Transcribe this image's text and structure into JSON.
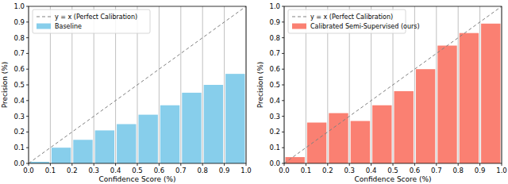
{
  "chart_data": [
    {
      "type": "bar",
      "x_label": "Confidence Score (%)",
      "y_label": "Precision (%)",
      "bins": [
        0,
        0.1,
        0.2,
        0.3,
        0.4,
        0.5,
        0.6,
        0.7,
        0.8,
        0.9,
        1
      ],
      "series": [
        {
          "name": "y = x (Perfect Calibration)",
          "type": "line",
          "line_style": "dashed",
          "color": "#808080",
          "x": [
            0,
            1
          ],
          "values": [
            0,
            1
          ]
        },
        {
          "name": "Baseline",
          "type": "bar",
          "color": "#87ceeb",
          "values": [
            0.01,
            0.1,
            0.15,
            0.21,
            0.25,
            0.31,
            0.37,
            0.45,
            0.5,
            0.57
          ]
        }
      ],
      "xlim": [
        0,
        1
      ],
      "ylim": [
        0,
        1
      ],
      "xticks": [
        {
          "value": 0,
          "label": "0.0"
        },
        0.1,
        0.2,
        0.3,
        0.4,
        0.5,
        0.6,
        0.7,
        0.8,
        0.9,
        {
          "value": 1,
          "label": "1.0"
        }
      ],
      "yticks": [
        {
          "value": 0,
          "label": "0.0"
        },
        0.1,
        0.2,
        0.3,
        0.4,
        0.5,
        0.6,
        0.7,
        0.8,
        0.9,
        {
          "value": 1,
          "label": "1.0"
        }
      ],
      "grid": "x",
      "legend": "upper left"
    },
    {
      "type": "bar",
      "x_label": "Confidence Score (%)",
      "y_label": "Precision (%)",
      "bins": [
        0,
        0.1,
        0.2,
        0.3,
        0.4,
        0.5,
        0.6,
        0.7,
        0.8,
        0.9,
        1
      ],
      "series": [
        {
          "name": "y = x (Perfect Calibration)",
          "type": "line",
          "line_style": "dashed",
          "color": "#808080",
          "x": [
            0,
            1
          ],
          "values": [
            0,
            1
          ]
        },
        {
          "name": "Calibrated Semi-Supervised (ours)",
          "type": "bar",
          "color": "#fa8072",
          "values": [
            0.04,
            0.26,
            0.32,
            0.27,
            0.37,
            0.46,
            0.6,
            0.75,
            0.83,
            0.89
          ]
        }
      ],
      "xlim": [
        0,
        1
      ],
      "ylim": [
        0,
        1
      ],
      "xticks": [
        {
          "value": 0,
          "label": "0.0"
        },
        0.1,
        0.2,
        0.3,
        0.4,
        0.5,
        0.6,
        0.7,
        0.8,
        0.9,
        {
          "value": 1,
          "label": "1.0"
        }
      ],
      "yticks": [
        {
          "value": 0,
          "label": "0.0"
        },
        0.1,
        0.2,
        0.3,
        0.4,
        0.5,
        0.6,
        0.7,
        0.8,
        0.9,
        {
          "value": 1,
          "label": "1.0"
        }
      ],
      "grid": "x",
      "legend": "upper left"
    }
  ]
}
